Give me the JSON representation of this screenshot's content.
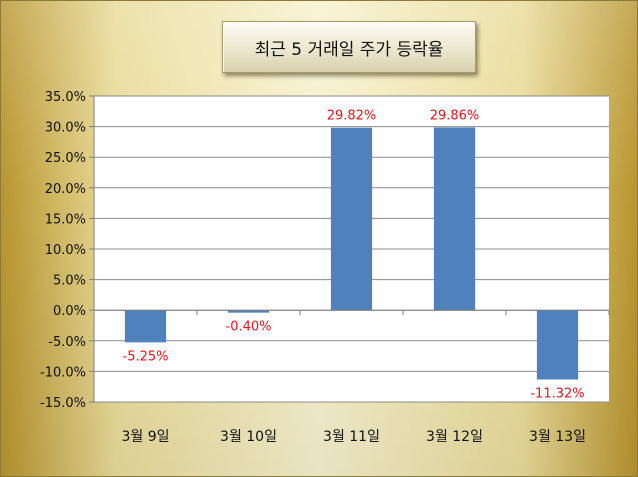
{
  "chart_data": {
    "type": "bar",
    "title": "최근 5 거래일 주가 등락율",
    "categories": [
      "3월 9일",
      "3월 10일",
      "3월 11일",
      "3월 12일",
      "3월 13일"
    ],
    "values": [
      -5.25,
      -0.4,
      29.82,
      29.86,
      -11.32
    ],
    "data_labels": [
      "-5.25%",
      "-0.40%",
      "29.82%",
      "29.86%",
      "-11.32%"
    ],
    "y_ticks": [
      "35.0%",
      "30.0%",
      "25.0%",
      "20.0%",
      "15.0%",
      "10.0%",
      "5.0%",
      "0.0%",
      "-5.0%",
      "-10.0%",
      "-15.0%"
    ],
    "ylim": [
      -15,
      35
    ],
    "xlabel": "",
    "ylabel": "",
    "grid": true,
    "bar_color": "#4f81bd",
    "label_color": "#e8141e"
  }
}
